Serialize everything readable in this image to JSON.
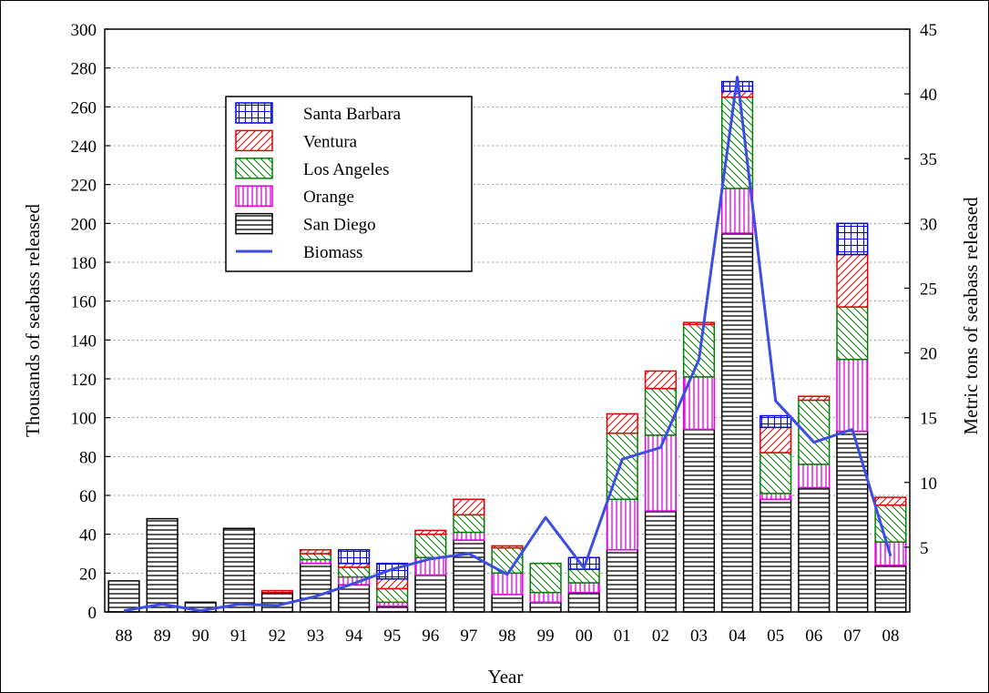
{
  "chart_data": {
    "type": "bar",
    "stacked": true,
    "xlabel": "Year",
    "ylabel": "Thousands of seabass released",
    "y2label": "Metric tons of seabass released",
    "ylim": [
      0,
      300
    ],
    "y2lim": [
      0,
      45
    ],
    "yticks": [
      0,
      20,
      40,
      60,
      80,
      100,
      120,
      140,
      160,
      180,
      200,
      220,
      240,
      260,
      280,
      300
    ],
    "y2ticks": [
      5,
      10,
      15,
      20,
      25,
      30,
      35,
      40,
      45
    ],
    "grid": "horizontal dotted",
    "legend_position": "upper-left",
    "categories": [
      "88",
      "89",
      "90",
      "91",
      "92",
      "93",
      "94",
      "95",
      "96",
      "97",
      "98",
      "99",
      "00",
      "01",
      "02",
      "03",
      "04",
      "05",
      "06",
      "07",
      "08"
    ],
    "series": [
      {
        "name": "San Diego",
        "color": "#000000",
        "pattern": "horizontal-lines",
        "values": [
          16,
          48,
          5,
          43,
          10,
          25,
          14,
          3,
          19,
          37,
          9,
          5,
          10,
          32,
          52,
          94,
          195,
          58,
          64,
          93,
          24
        ]
      },
      {
        "name": "Orange",
        "color": "#e000e0",
        "pattern": "vertical-lines",
        "values": [
          0,
          0,
          0,
          0,
          0,
          2,
          4,
          2,
          9,
          4,
          11,
          5,
          5,
          26,
          39,
          27,
          23,
          3,
          12,
          37,
          12
        ]
      },
      {
        "name": "Los Angeles",
        "color": "#008000",
        "pattern": "back-diagonal",
        "values": [
          0,
          0,
          0,
          0,
          0,
          3,
          5,
          7,
          12,
          9,
          13,
          15,
          7,
          34,
          24,
          27,
          47,
          21,
          33,
          27,
          19
        ]
      },
      {
        "name": "Ventura",
        "color": "#e00000",
        "pattern": "forward-diagonal",
        "values": [
          0,
          0,
          0,
          0,
          1,
          2,
          2,
          5,
          2,
          8,
          1,
          0,
          0,
          10,
          9,
          1,
          3,
          13,
          2,
          27,
          4
        ]
      },
      {
        "name": "Santa Barbara",
        "color": "#0000e0",
        "pattern": "grid",
        "values": [
          0,
          0,
          0,
          0,
          0,
          0,
          7,
          8,
          0,
          0,
          0,
          0,
          6,
          0,
          0,
          0,
          5,
          6,
          0,
          16,
          0
        ]
      }
    ],
    "line_series": {
      "name": "Biomass",
      "color": "#3c4ce6",
      "axis": "right",
      "values": [
        0.1,
        0.6,
        0.1,
        0.6,
        0.5,
        1.2,
        2.2,
        3.3,
        4.1,
        4.5,
        2.9,
        7.3,
        3.4,
        11.8,
        12.7,
        19.5,
        41.3,
        16.3,
        13.1,
        14.1,
        4.3
      ]
    }
  }
}
